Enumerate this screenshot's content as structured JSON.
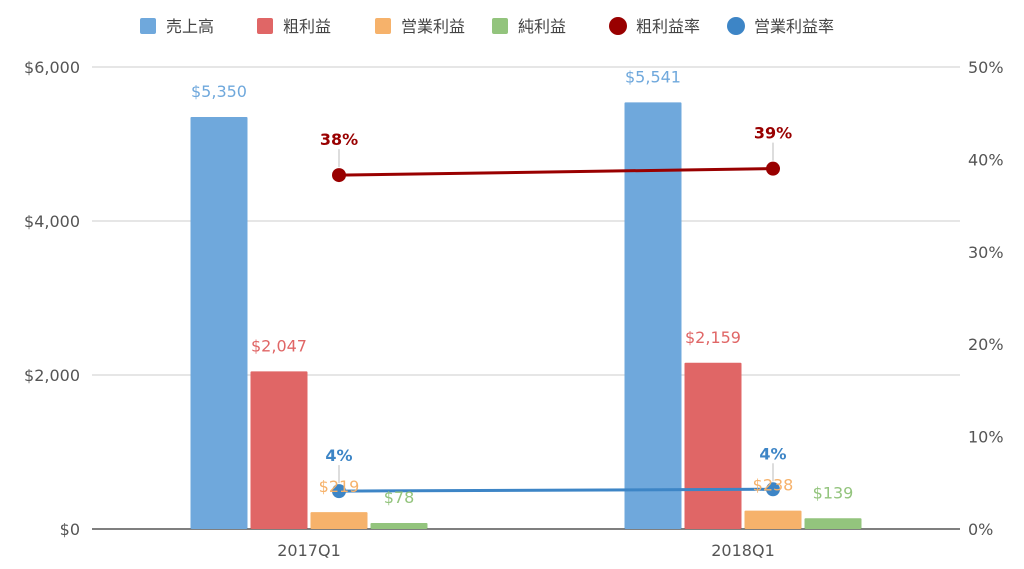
{
  "chart_data": {
    "type": "bar",
    "categories": [
      "2017Q1",
      "2018Q1"
    ],
    "series": [
      {
        "name": "売上高",
        "kind": "bar",
        "axis": "left",
        "color": "#6fa8dc",
        "label_color": "#6fa8dc",
        "values": [
          5350,
          5541
        ],
        "labels": [
          "$5,350",
          "$5,541"
        ]
      },
      {
        "name": "粗利益",
        "kind": "bar",
        "axis": "left",
        "color": "#e06666",
        "label_color": "#e06666",
        "values": [
          2047,
          2159
        ],
        "labels": [
          "$2,047",
          "$2,159"
        ]
      },
      {
        "name": "営業利益",
        "kind": "bar",
        "axis": "left",
        "color": "#f6b26b",
        "label_color": "#f6b26b",
        "values": [
          219,
          238
        ],
        "labels": [
          "$219",
          "$238"
        ]
      },
      {
        "name": "純利益",
        "kind": "bar",
        "axis": "left",
        "color": "#93c47d",
        "label_color": "#93c47d",
        "values": [
          78,
          139
        ],
        "labels": [
          "$78",
          "$139"
        ]
      },
      {
        "name": "粗利益率",
        "kind": "line",
        "axis": "right",
        "color": "#990000",
        "label_color": "#990000",
        "values": [
          38.3,
          39.0
        ],
        "labels": [
          "38%",
          "39%"
        ]
      },
      {
        "name": "営業利益率",
        "kind": "line",
        "axis": "right",
        "color": "#3d85c6",
        "label_color": "#3d85c6",
        "values": [
          4.1,
          4.3
        ],
        "labels": [
          "4%",
          "4%"
        ]
      }
    ],
    "left_axis": {
      "min": 0,
      "max": 6000,
      "ticks": [
        0,
        2000,
        4000,
        6000
      ],
      "tick_labels": [
        "$0",
        "$2,000",
        "$4,000",
        "$6,000"
      ]
    },
    "right_axis": {
      "min": 0,
      "max": 50,
      "ticks": [
        0,
        10,
        20,
        30,
        40,
        50
      ],
      "tick_labels": [
        "0%",
        "10%",
        "20%",
        "30%",
        "40%",
        "50%"
      ]
    },
    "legend_position": "top",
    "grid": true
  }
}
